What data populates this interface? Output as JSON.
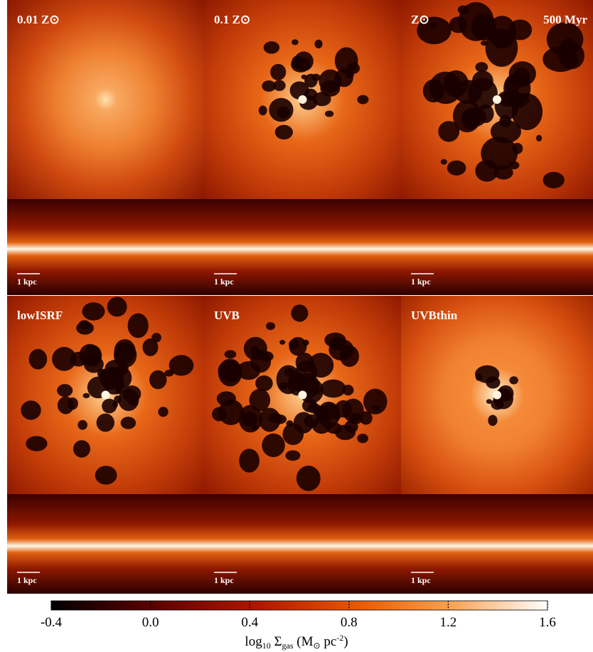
{
  "panels": [
    {
      "label": "0.01 Z⊙"
    },
    {
      "label": "0.1 Z⊙"
    },
    {
      "label": "Z⊙",
      "time_label": "500 Myr"
    },
    {
      "label": "lowISRF"
    },
    {
      "label": "UVB"
    },
    {
      "label": "UVBthin"
    }
  ],
  "scale_bars": [
    "1 kpc",
    "1 kpc",
    "1 kpc",
    "1 kpc",
    "1 kpc",
    "1 kpc"
  ],
  "colorbar": {
    "range": [
      -0.4,
      1.6
    ],
    "ticks": [
      -0.4,
      {
        "value": 0,
        "label": "0.0"
      },
      0.4,
      0.8,
      1.2,
      1.6
    ],
    "label_parts": [
      "log",
      "10",
      " Σ",
      "gas",
      " (M",
      "⊙",
      " pc",
      "-2",
      ")"
    ]
  }
}
